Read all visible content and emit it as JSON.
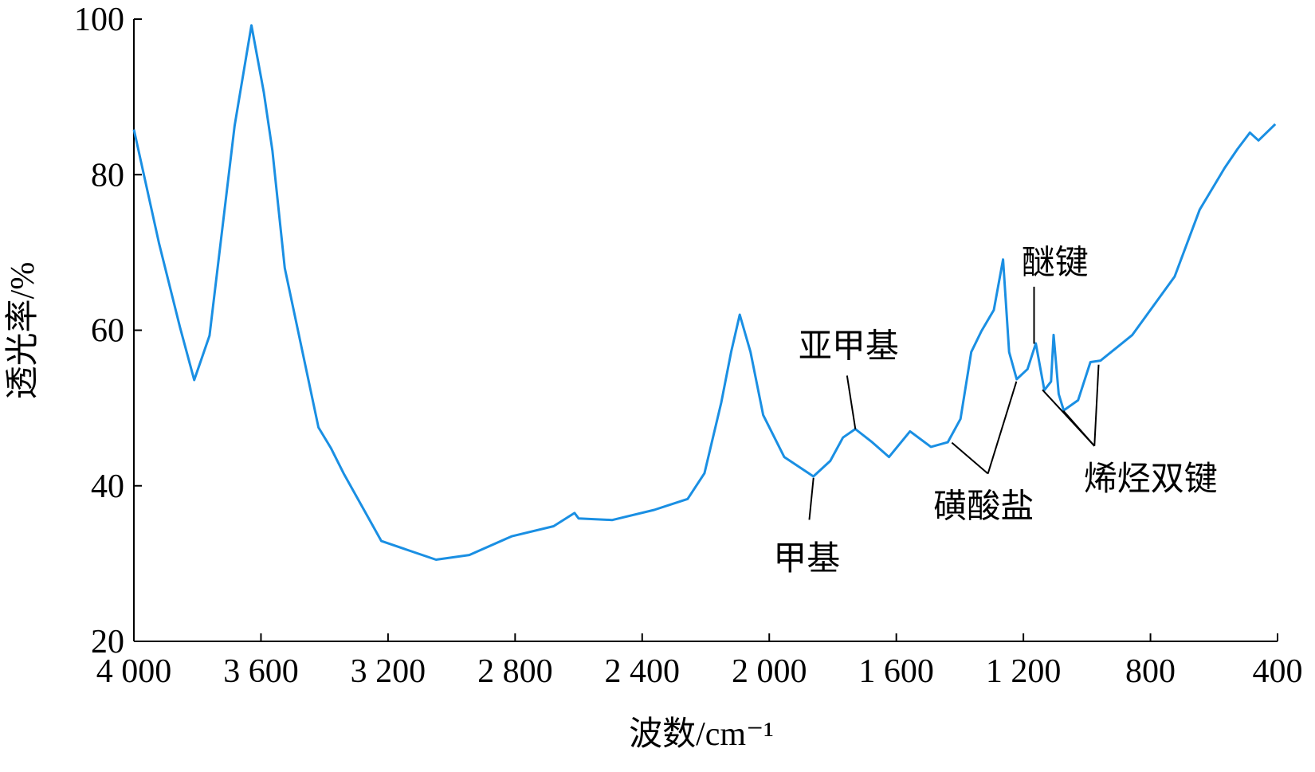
{
  "chart_data": {
    "type": "line",
    "xlabel": "波数/cm⁻¹",
    "ylabel": "透光率/%",
    "xlim": [
      4000,
      400
    ],
    "ylim": [
      20,
      100
    ],
    "xticks": [
      {
        "value": 4000,
        "label": "4 000"
      },
      {
        "value": 3600,
        "label": "3 600"
      },
      {
        "value": 3200,
        "label": "3 200"
      },
      {
        "value": 2800,
        "label": "2 800"
      },
      {
        "value": 2400,
        "label": "2 400"
      },
      {
        "value": 2000,
        "label": "2 000"
      },
      {
        "value": 1600,
        "label": "1 600"
      },
      {
        "value": 1200,
        "label": "1 200"
      },
      800,
      400
    ],
    "yticks": [
      20,
      40,
      60,
      80,
      100
    ],
    "series": [
      {
        "color": "#1a8fe3",
        "x": [
          4000,
          3921,
          3855,
          3810,
          3762,
          3683,
          3630,
          3591,
          3564,
          3525,
          3419,
          3379,
          3340,
          3221,
          3049,
          2944,
          2811,
          2679,
          2613,
          2600,
          2494,
          2362,
          2257,
          2204,
          2151,
          2120,
          2093,
          2059,
          2019,
          1953,
          1861,
          1808,
          1768,
          1729,
          1676,
          1623,
          1557,
          1491,
          1438,
          1398,
          1364,
          1332,
          1293,
          1264,
          1245,
          1221,
          1187,
          1161,
          1134,
          1113,
          1105,
          1089,
          1073,
          1028,
          989,
          957,
          857,
          724,
          645,
          566,
          526,
          487,
          460,
          407
        ],
        "values": [
          85.8,
          71.2,
          60.4,
          53.6,
          59.3,
          86.3,
          99.2,
          90.6,
          83.1,
          68.0,
          47.5,
          44.8,
          41.6,
          32.9,
          30.5,
          31.1,
          33.5,
          34.8,
          36.5,
          35.8,
          35.6,
          36.9,
          38.3,
          41.6,
          50.7,
          57.2,
          62.0,
          57.2,
          49.1,
          43.7,
          41.2,
          43.2,
          46.2,
          47.3,
          45.6,
          43.7,
          47.0,
          45.0,
          45.6,
          48.6,
          57.2,
          59.9,
          62.6,
          69.1,
          57.2,
          53.7,
          55.0,
          58.3,
          52.3,
          53.4,
          59.4,
          51.8,
          49.7,
          51.0,
          55.9,
          56.1,
          59.4,
          66.9,
          75.5,
          80.9,
          83.3,
          85.4,
          84.4,
          86.5
        ]
      }
    ],
    "annotations": [
      "甲基",
      "亚甲基",
      "磺酸盐",
      "醚键",
      "烯烃双键"
    ]
  }
}
